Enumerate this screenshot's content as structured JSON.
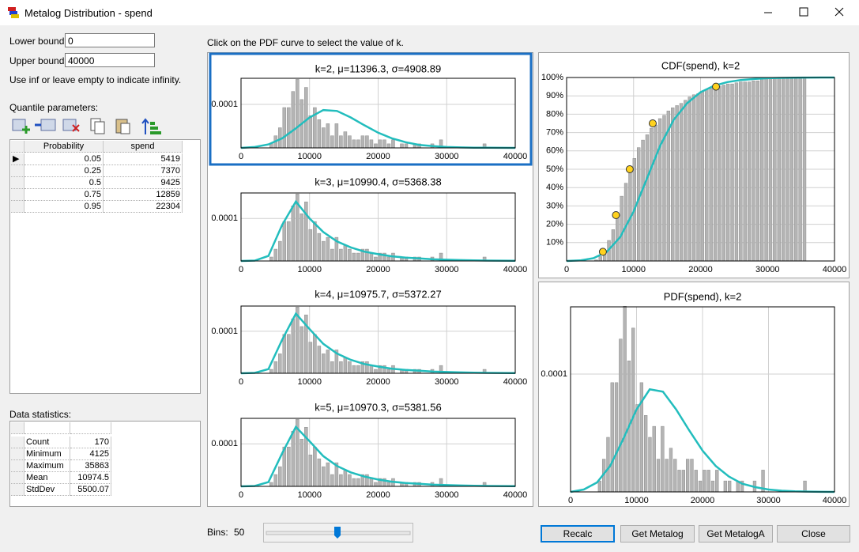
{
  "window": {
    "title": "Metalog Distribution - spend"
  },
  "bounds": {
    "lower_label": "Lower bound:",
    "lower": "0",
    "upper_label": "Upper bound:",
    "upper": "40000",
    "hint": "Use inf or leave empty to indicate infinity."
  },
  "quantile_label": "Quantile parameters:",
  "quantile_table": {
    "columns": [
      "Probability",
      "spend"
    ],
    "rows": [
      [
        0.05,
        5419
      ],
      [
        0.25,
        7370
      ],
      [
        0.5,
        9425
      ],
      [
        0.75,
        12859
      ],
      [
        0.95,
        22304
      ]
    ]
  },
  "stats_label": "Data statistics:",
  "stats_table": {
    "rows": [
      [
        "Count",
        170
      ],
      [
        "Minimum",
        4125
      ],
      [
        "Maximum",
        35863
      ],
      [
        "Mean",
        10974.5
      ],
      [
        "StdDev",
        5500.07
      ]
    ]
  },
  "instruction": "Click on the PDF curve to select the value of k.",
  "bins_label": "Bins:",
  "bins_value": 50,
  "buttons": [
    "Recalc",
    "Get Metalog",
    "Get MetalogA",
    "Close"
  ],
  "histogram": {
    "bins": [
      4125,
      4760,
      5395,
      6029,
      6664,
      7299,
      7934,
      8568,
      9203,
      9838,
      10473,
      11107,
      11742,
      12377,
      13012,
      13646,
      14281,
      14916,
      15551,
      16185,
      16820,
      17455,
      18090,
      18724,
      19359,
      19994,
      20629,
      21263,
      21898,
      22533,
      23168,
      23803,
      24437,
      25072,
      25707,
      26342,
      26976,
      27611,
      28246,
      28881,
      29515,
      30150,
      30785,
      31420,
      32054,
      32689,
      33324,
      33959,
      34593,
      35228,
      35863
    ],
    "values": [
      9.3e-06,
      2.78e-05,
      4.63e-05,
      9.27e-05,
      9.27e-05,
      0.0001297,
      0.0001575,
      0.0001112,
      0.000139,
      7.41e-05,
      9.27e-05,
      6.49e-05,
      4.63e-05,
      5.56e-05,
      2.78e-05,
      5.56e-05,
      2.78e-05,
      3.71e-05,
      2.78e-05,
      1.85e-05,
      1.85e-05,
      2.78e-05,
      2.78e-05,
      1.85e-05,
      9.3e-06,
      1.85e-05,
      1.85e-05,
      9.3e-06,
      1.85e-05,
      0,
      9.3e-06,
      9.3e-06,
      0,
      9.3e-06,
      9.3e-06,
      0,
      0,
      9.3e-06,
      0,
      1.85e-05,
      0,
      0,
      0,
      0,
      0,
      0,
      0,
      0,
      0,
      9.3e-06
    ]
  },
  "chart_data": [
    {
      "type": "pdf",
      "title": "k=2, μ=11396.3, σ=4908.89",
      "xlim": [
        0,
        40000
      ],
      "xticks": [
        0,
        10000,
        20000,
        30000,
        40000
      ],
      "ylim": [
        0,
        0.00016
      ],
      "yticks": [
        0.0001
      ],
      "grid": true,
      "selected": true,
      "series": [
        {
          "color": "#22bdbd",
          "x": [
            0,
            2000,
            4000,
            6000,
            8000,
            10000,
            12000,
            14000,
            16000,
            18000,
            20000,
            22000,
            24000,
            26000,
            28000,
            30000,
            32000,
            34000,
            36000,
            38000,
            40000
          ],
          "values": [
            0,
            2e-06,
            8e-06,
            2.2e-05,
            4.5e-05,
            7e-05,
            8.7e-05,
            8.5e-05,
            7e-05,
            5.2e-05,
            3.5e-05,
            2.2e-05,
            1.3e-05,
            7e-06,
            4e-06,
            2e-06,
            1e-06,
            5e-07,
            3e-07,
            1e-07,
            0
          ]
        }
      ]
    },
    {
      "type": "pdf",
      "title": "k=3, μ=10990.4, σ=5368.38",
      "xlim": [
        0,
        40000
      ],
      "xticks": [
        0,
        10000,
        20000,
        30000,
        40000
      ],
      "ylim": [
        0,
        0.00016
      ],
      "yticks": [
        0.0001
      ],
      "grid": true,
      "selected": false,
      "series": [
        {
          "color": "#22bdbd",
          "x": [
            0,
            2000,
            4000,
            6000,
            8000,
            10000,
            12000,
            14000,
            16000,
            18000,
            20000,
            22000,
            24000,
            26000,
            28000,
            30000,
            32000,
            34000,
            36000,
            38000,
            40000
          ],
          "values": [
            0,
            1e-06,
            1.2e-05,
            8.5e-05,
            0.00014,
            0.0001,
            6.8e-05,
            4.6e-05,
            3.2e-05,
            2.2e-05,
            1.6e-05,
            1.1e-05,
            8e-06,
            6e-06,
            4e-06,
            3e-06,
            2e-06,
            1.5e-06,
            1e-06,
            7e-07,
            5e-07
          ]
        }
      ]
    },
    {
      "type": "pdf",
      "title": "k=4, μ=10975.7, σ=5372.27",
      "xlim": [
        0,
        40000
      ],
      "xticks": [
        0,
        10000,
        20000,
        30000,
        40000
      ],
      "ylim": [
        0,
        0.00016
      ],
      "yticks": [
        0.0001
      ],
      "grid": true,
      "selected": false,
      "series": [
        {
          "color": "#22bdbd",
          "x": [
            0,
            2000,
            4000,
            6000,
            8000,
            10000,
            12000,
            14000,
            16000,
            18000,
            20000,
            22000,
            24000,
            26000,
            28000,
            30000,
            32000,
            34000,
            36000,
            38000,
            40000
          ],
          "values": [
            0,
            1e-06,
            1e-05,
            8e-05,
            0.000142,
            0.000105,
            7e-05,
            4.7e-05,
            3.2e-05,
            2.2e-05,
            1.6e-05,
            1.1e-05,
            8e-06,
            6e-06,
            4e-06,
            3e-06,
            2e-06,
            1.5e-06,
            1e-06,
            7e-07,
            5e-07
          ]
        }
      ]
    },
    {
      "type": "pdf",
      "title": "k=5, μ=10970.3, σ=5381.56",
      "xlim": [
        0,
        40000
      ],
      "xticks": [
        0,
        10000,
        20000,
        30000,
        40000
      ],
      "ylim": [
        0,
        0.00016
      ],
      "yticks": [
        0.0001
      ],
      "grid": true,
      "selected": false,
      "series": [
        {
          "color": "#22bdbd",
          "x": [
            0,
            2000,
            4000,
            6000,
            8000,
            10000,
            12000,
            14000,
            16000,
            18000,
            20000,
            22000,
            24000,
            26000,
            28000,
            30000,
            32000,
            34000,
            36000,
            38000,
            40000
          ],
          "values": [
            0,
            1e-06,
            1e-05,
            7.8e-05,
            0.00014,
            0.000106,
            7.1e-05,
            4.8e-05,
            3.3e-05,
            2.3e-05,
            1.6e-05,
            1.1e-05,
            8e-06,
            6e-06,
            4e-06,
            3e-06,
            2e-06,
            1.5e-06,
            1e-06,
            7e-07,
            5e-07
          ]
        }
      ]
    },
    {
      "type": "cdf",
      "title": "CDF(spend), k=2",
      "xlim": [
        0,
        40000
      ],
      "xticks": [
        0,
        10000,
        20000,
        30000,
        40000
      ],
      "ylim": [
        0,
        1
      ],
      "yticks": [
        {
          "value": 0.1,
          "label": "10%"
        },
        {
          "value": 0.2,
          "label": "20%"
        },
        {
          "value": 0.3,
          "label": "30%"
        },
        {
          "value": 0.4,
          "label": "40%"
        },
        {
          "value": 0.5,
          "label": "50%"
        },
        {
          "value": 0.6,
          "label": "60%"
        },
        {
          "value": 0.7,
          "label": "70%"
        },
        {
          "value": 0.8,
          "label": "80%"
        },
        {
          "value": 0.9,
          "label": "90%"
        },
        {
          "value": 1,
          "label": "100%"
        }
      ],
      "grid": true,
      "selected": false,
      "values": [
        0.006,
        0.024,
        0.053,
        0.112,
        0.171,
        0.253,
        0.353,
        0.424,
        0.512,
        0.559,
        0.618,
        0.659,
        0.688,
        0.724,
        0.741,
        0.776,
        0.794,
        0.818,
        0.835,
        0.847,
        0.859,
        0.876,
        0.894,
        0.906,
        0.912,
        0.924,
        0.935,
        0.941,
        0.953,
        0.953,
        0.959,
        0.965,
        0.965,
        0.971,
        0.976,
        0.976,
        0.976,
        0.982,
        0.982,
        0.994,
        0.994,
        0.994,
        0.994,
        0.994,
        0.994,
        0.994,
        0.994,
        0.994,
        0.994,
        1
      ],
      "series": [
        {
          "color": "#22bdbd",
          "x": [
            0,
            2000,
            4000,
            6000,
            8000,
            10000,
            12000,
            14000,
            16000,
            18000,
            20000,
            22000,
            24000,
            26000,
            28000,
            30000,
            32000,
            34000,
            36000,
            38000,
            40000
          ],
          "values": [
            0,
            0.003,
            0.015,
            0.05,
            0.13,
            0.27,
            0.45,
            0.63,
            0.77,
            0.86,
            0.92,
            0.955,
            0.975,
            0.986,
            0.992,
            0.996,
            0.998,
            0.999,
            0.9995,
            1,
            1
          ]
        }
      ]
    },
    {
      "type": "pdf",
      "title": "PDF(spend), k=2",
      "xlim": [
        0,
        40000
      ],
      "xticks": [
        0,
        10000,
        20000,
        30000,
        40000
      ],
      "ylim": [
        0,
        0.000157
      ],
      "yticks": [
        0.0001
      ],
      "grid": true,
      "selected": false,
      "series": [
        {
          "color": "#22bdbd",
          "x": [
            0,
            2000,
            4000,
            6000,
            8000,
            10000,
            12000,
            14000,
            16000,
            18000,
            20000,
            22000,
            24000,
            26000,
            28000,
            30000,
            32000,
            34000,
            36000,
            38000,
            40000
          ],
          "values": [
            0,
            2e-06,
            8e-06,
            2.2e-05,
            4.5e-05,
            7e-05,
            8.7e-05,
            8.5e-05,
            7e-05,
            5.2e-05,
            3.5e-05,
            2.2e-05,
            1.3e-05,
            7e-06,
            4e-06,
            2e-06,
            1e-06,
            5e-07,
            3e-07,
            1e-07,
            0
          ]
        }
      ]
    }
  ]
}
